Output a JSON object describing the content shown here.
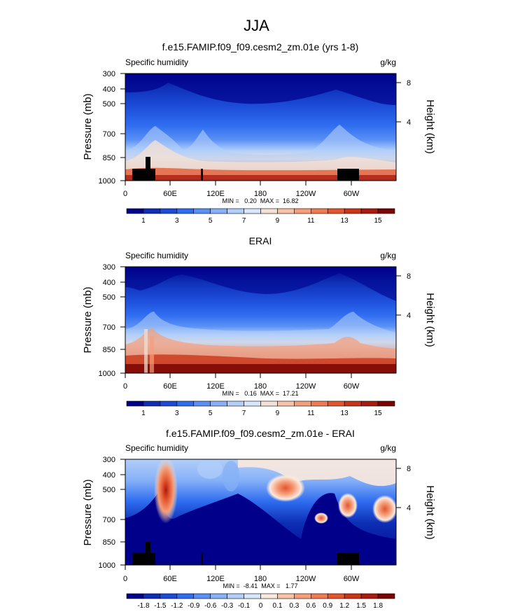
{
  "season_title": "JJA",
  "chart_data": [
    {
      "type": "heatmap",
      "title": "f.e15.FAMIP.f09_f09.cesm2_zm.01e (yrs 1-8)",
      "variable": "Specific humidity",
      "units": "g/kg",
      "ylabel": "Pressure (mb)",
      "ylabel_right": "Height (km)",
      "xticks": [
        "0",
        "60E",
        "120E",
        "180",
        "120W",
        "60W"
      ],
      "yticks": [
        "300",
        "400",
        "500",
        "700",
        "850",
        "1000"
      ],
      "yticks_right": [
        "8",
        "4"
      ],
      "stats": "MIN =   0.20  MAX =  16.82",
      "min": 0.2,
      "max": 16.82,
      "colorbar_labels": [
        "1",
        "3",
        "5",
        "7",
        "9",
        "11",
        "13",
        "15"
      ],
      "colorbar_colors": [
        "#00008a",
        "#0d2fb5",
        "#1c4bd8",
        "#2e6cf0",
        "#5a90f5",
        "#86b0f7",
        "#b2cffa",
        "#d8e6fb",
        "#f4e1d5",
        "#f8c2a6",
        "#f59e7a",
        "#ef7b52",
        "#e2552e",
        "#c93517",
        "#a81c0f",
        "#7a0403"
      ],
      "terrain_masked": true
    },
    {
      "type": "heatmap",
      "title": "ERAI",
      "variable": "Specific humidity",
      "units": "g/kg",
      "ylabel": "Pressure (mb)",
      "ylabel_right": "Height (km)",
      "xticks": [
        "0",
        "60E",
        "120E",
        "180",
        "120W",
        "60W"
      ],
      "yticks": [
        "300",
        "400",
        "500",
        "700",
        "850",
        "1000"
      ],
      "yticks_right": [
        "8",
        "4"
      ],
      "stats": "MIN =   0.16  MAX =  17.21",
      "min": 0.16,
      "max": 17.21,
      "colorbar_labels": [
        "1",
        "3",
        "5",
        "7",
        "9",
        "11",
        "13",
        "15"
      ],
      "colorbar_colors": [
        "#00008a",
        "#0d2fb5",
        "#1c4bd8",
        "#2e6cf0",
        "#5a90f5",
        "#86b0f7",
        "#b2cffa",
        "#d8e6fb",
        "#f4e1d5",
        "#f8c2a6",
        "#f59e7a",
        "#ef7b52",
        "#e2552e",
        "#c93517",
        "#a81c0f",
        "#7a0403"
      ],
      "terrain_masked": false
    },
    {
      "type": "heatmap",
      "title": "f.e15.FAMIP.f09_f09.cesm2_zm.01e - ERAI",
      "variable": "Specific humidity",
      "units": "g/kg",
      "ylabel": "Pressure (mb)",
      "ylabel_right": "Height (km)",
      "xticks": [
        "0",
        "60E",
        "120E",
        "180",
        "120W",
        "60W"
      ],
      "yticks": [
        "300",
        "400",
        "500",
        "700",
        "850",
        "1000"
      ],
      "yticks_right": [
        "8",
        "4"
      ],
      "stats": "MIN =  -8.41  MAX =   1.77",
      "min": -8.41,
      "max": 1.77,
      "colorbar_labels": [
        "-1.8",
        "-1.5",
        "-1.2",
        "-0.9",
        "-0.6",
        "-0.3",
        "-0.1",
        "0",
        "0.1",
        "0.3",
        "0.6",
        "0.9",
        "1.2",
        "1.5",
        "1.8"
      ],
      "colorbar_colors": [
        "#00008a",
        "#0d2fb5",
        "#1c4bd8",
        "#2e6cf0",
        "#5a90f5",
        "#86b0f7",
        "#b2cffa",
        "#d8e6fb",
        "#fbe9de",
        "#f8c2a6",
        "#f59e7a",
        "#ef7b52",
        "#e2552e",
        "#c93517",
        "#a81c0f",
        "#7a0403"
      ],
      "terrain_masked": true
    }
  ]
}
